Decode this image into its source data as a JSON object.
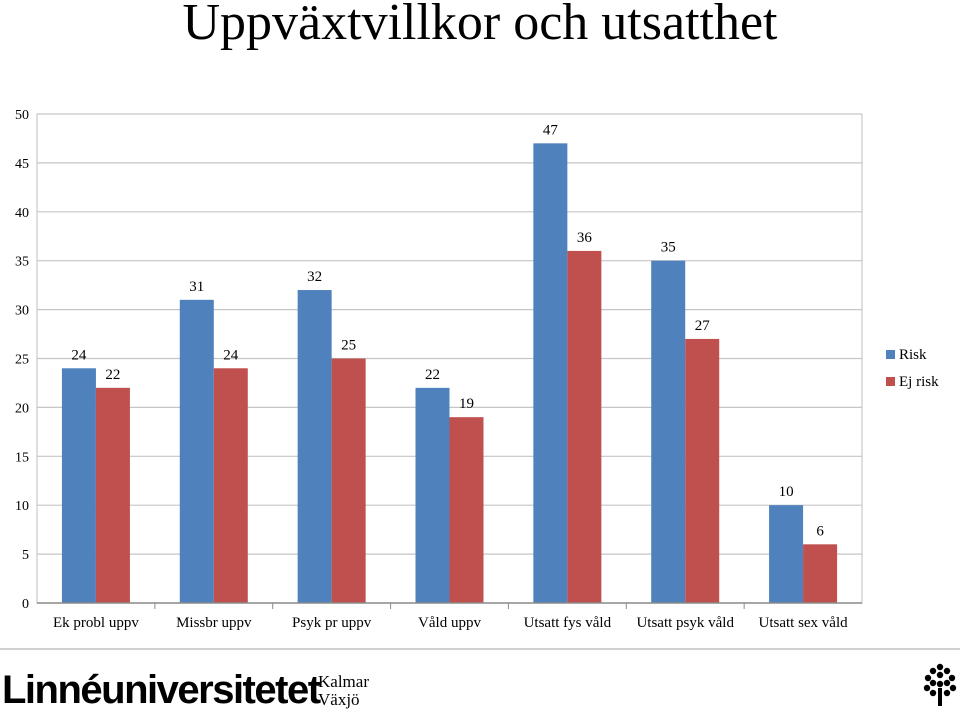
{
  "title": "Uppväxtvillkor och utsatthet",
  "chart_data": {
    "type": "bar",
    "categories": [
      "Ek probl uppv",
      "Missbr uppv",
      "Psyk pr uppv",
      "Våld uppv",
      "Utsatt fys våld",
      "Utsatt psyk våld",
      "Utsatt sex våld"
    ],
    "series": [
      {
        "name": "Risk",
        "color": "#4f81bd",
        "values": [
          24,
          31,
          32,
          22,
          47,
          35,
          10
        ]
      },
      {
        "name": "Ej risk",
        "color": "#c0504d",
        "values": [
          22,
          24,
          25,
          19,
          36,
          27,
          6
        ]
      }
    ],
    "ylim": [
      0,
      50
    ],
    "yticks": [
      0,
      5,
      10,
      15,
      20,
      25,
      30,
      35,
      40,
      45,
      50
    ],
    "grid": true,
    "legend": "right"
  },
  "footer": {
    "logo_text": "Linnéuniversitetet",
    "logo_sub1": "Kalmar",
    "logo_sub2": "Växjö",
    "tree_icon": "university-tree-icon"
  }
}
